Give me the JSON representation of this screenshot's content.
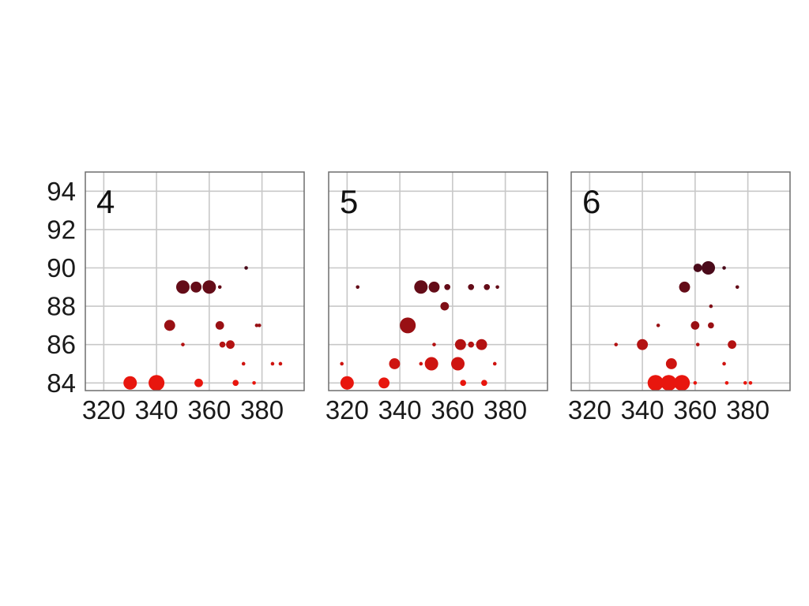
{
  "chart_data": {
    "type": "scatter",
    "subtype": "faceted bubble",
    "xlim": [
      313,
      396
    ],
    "ylim": [
      83.6,
      95.0
    ],
    "x_ticks": [
      320,
      340,
      360,
      380
    ],
    "y_ticks": [
      84,
      86,
      88,
      90,
      92,
      94
    ],
    "grid": true,
    "color_scale": {
      "low": "#e8160e",
      "high": "#4a0a1a"
    },
    "panels": [
      {
        "label": "4",
        "points": [
          {
            "x": 330,
            "y": 84,
            "size": 5
          },
          {
            "x": 340,
            "y": 84,
            "size": 6
          },
          {
            "x": 356,
            "y": 84,
            "size": 3
          },
          {
            "x": 370,
            "y": 84,
            "size": 2
          },
          {
            "x": 377,
            "y": 84,
            "size": 1
          },
          {
            "x": 373,
            "y": 85,
            "size": 1
          },
          {
            "x": 384,
            "y": 85,
            "size": 1
          },
          {
            "x": 387,
            "y": 85,
            "size": 1
          },
          {
            "x": 350,
            "y": 86,
            "size": 1
          },
          {
            "x": 365,
            "y": 86,
            "size": 2
          },
          {
            "x": 368,
            "y": 86,
            "size": 3
          },
          {
            "x": 345,
            "y": 87,
            "size": 4
          },
          {
            "x": 364,
            "y": 87,
            "size": 3
          },
          {
            "x": 378,
            "y": 87,
            "size": 1
          },
          {
            "x": 379,
            "y": 87,
            "size": 1
          },
          {
            "x": 350,
            "y": 89,
            "size": 5
          },
          {
            "x": 355,
            "y": 89,
            "size": 4
          },
          {
            "x": 360,
            "y": 89,
            "size": 5
          },
          {
            "x": 364,
            "y": 89,
            "size": 1
          },
          {
            "x": 374,
            "y": 90,
            "size": 1
          }
        ]
      },
      {
        "label": "5",
        "points": [
          {
            "x": 320,
            "y": 84,
            "size": 5
          },
          {
            "x": 334,
            "y": 84,
            "size": 4
          },
          {
            "x": 364,
            "y": 84,
            "size": 2
          },
          {
            "x": 372,
            "y": 84,
            "size": 2
          },
          {
            "x": 318,
            "y": 85,
            "size": 1
          },
          {
            "x": 338,
            "y": 85,
            "size": 4
          },
          {
            "x": 348,
            "y": 85,
            "size": 1
          },
          {
            "x": 352,
            "y": 85,
            "size": 5
          },
          {
            "x": 362,
            "y": 85,
            "size": 5
          },
          {
            "x": 376,
            "y": 85,
            "size": 1
          },
          {
            "x": 353,
            "y": 86,
            "size": 1
          },
          {
            "x": 363,
            "y": 86,
            "size": 4
          },
          {
            "x": 367,
            "y": 86,
            "size": 2
          },
          {
            "x": 371,
            "y": 86,
            "size": 4
          },
          {
            "x": 343,
            "y": 87,
            "size": 6
          },
          {
            "x": 357,
            "y": 88,
            "size": 3
          },
          {
            "x": 324,
            "y": 89,
            "size": 1
          },
          {
            "x": 348,
            "y": 89,
            "size": 5
          },
          {
            "x": 353,
            "y": 89,
            "size": 4
          },
          {
            "x": 358,
            "y": 89,
            "size": 2
          },
          {
            "x": 367,
            "y": 89,
            "size": 2
          },
          {
            "x": 373,
            "y": 89,
            "size": 2
          },
          {
            "x": 377,
            "y": 89,
            "size": 1
          }
        ]
      },
      {
        "label": "6",
        "points": [
          {
            "x": 345,
            "y": 84,
            "size": 6
          },
          {
            "x": 350,
            "y": 84,
            "size": 6
          },
          {
            "x": 355,
            "y": 84,
            "size": 6
          },
          {
            "x": 360,
            "y": 84,
            "size": 1
          },
          {
            "x": 372,
            "y": 84,
            "size": 1
          },
          {
            "x": 379,
            "y": 84,
            "size": 1
          },
          {
            "x": 381,
            "y": 84,
            "size": 1
          },
          {
            "x": 351,
            "y": 85,
            "size": 4
          },
          {
            "x": 371,
            "y": 85,
            "size": 1
          },
          {
            "x": 330,
            "y": 86,
            "size": 1
          },
          {
            "x": 340,
            "y": 86,
            "size": 4
          },
          {
            "x": 361,
            "y": 86,
            "size": 1
          },
          {
            "x": 374,
            "y": 86,
            "size": 3
          },
          {
            "x": 346,
            "y": 87,
            "size": 1
          },
          {
            "x": 360,
            "y": 87,
            "size": 3
          },
          {
            "x": 366,
            "y": 87,
            "size": 2
          },
          {
            "x": 366,
            "y": 88,
            "size": 1
          },
          {
            "x": 356,
            "y": 89,
            "size": 4
          },
          {
            "x": 376,
            "y": 89,
            "size": 1
          },
          {
            "x": 361,
            "y": 90,
            "size": 3
          },
          {
            "x": 365,
            "y": 90,
            "size": 5
          },
          {
            "x": 371,
            "y": 90,
            "size": 1
          }
        ]
      }
    ]
  }
}
